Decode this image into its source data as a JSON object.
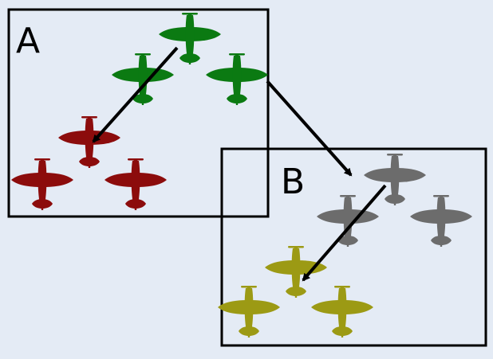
{
  "background_color": "#e4ebf5",
  "panels": [
    {
      "label": "A",
      "formations": [
        {
          "role": "lead",
          "color": "#0b7a12"
        },
        {
          "role": "follower",
          "color": "#8c0c0c"
        }
      ]
    },
    {
      "label": "B",
      "formations": [
        {
          "role": "lead",
          "color": "#6c6c6c"
        },
        {
          "role": "follower",
          "color": "#9c9a14"
        }
      ]
    }
  ],
  "arrow_color": "#000000",
  "aircraft_icon": "airplane-icon"
}
